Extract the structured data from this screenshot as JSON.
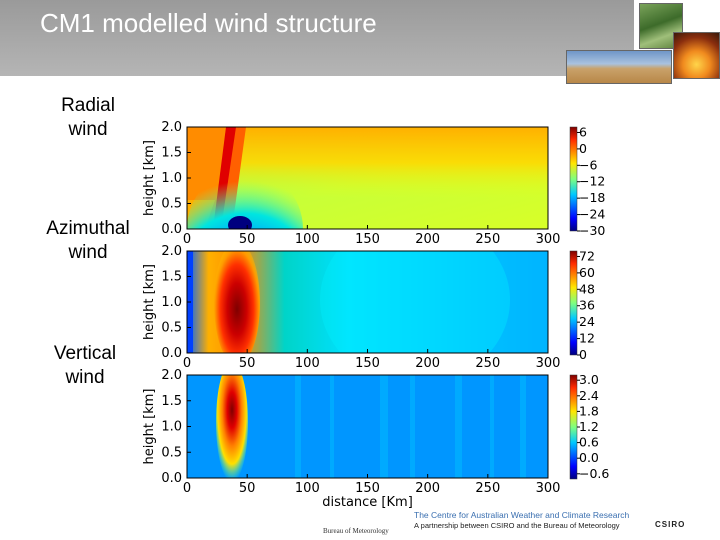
{
  "slide": {
    "title": "CM1 modelled wind structure"
  },
  "labels": {
    "radial": "Radial\nwind",
    "azimuthal": "Azimuthal\nwind",
    "vertical": "Vertical\nwind"
  },
  "footer": {
    "line1": "The Centre for Australian Weather and Climate Research",
    "line2": "A partnership between CSIRO and the Bureau of Meteorology",
    "bom": "Bureau of Meteorology",
    "csiro": "CSIRO"
  },
  "chart_data": [
    {
      "type": "heatmap",
      "name": "Radial wind",
      "ylabel": "height [km]",
      "xlabel": "",
      "xlim": [
        0,
        300
      ],
      "ylim": [
        0,
        2.0
      ],
      "xticks": [
        "0",
        "50",
        "100",
        "150",
        "200",
        "250",
        "300"
      ],
      "yticks": [
        "0.0",
        "0.5",
        "1.0",
        "1.5",
        "2.0"
      ],
      "colorbar_ticks": [
        "6",
        "0",
        "−6",
        "−12",
        "−18",
        "−24",
        "−30"
      ],
      "colorbar_range": [
        -30,
        8
      ]
    },
    {
      "type": "heatmap",
      "name": "Azimuthal wind",
      "ylabel": "height [km]",
      "xlabel": "",
      "xlim": [
        0,
        300
      ],
      "ylim": [
        0,
        2.0
      ],
      "xticks": [
        "0",
        "50",
        "100",
        "150",
        "200",
        "250",
        "300"
      ],
      "yticks": [
        "0.0",
        "0.5",
        "1.0",
        "1.5",
        "2.0"
      ],
      "colorbar_ticks": [
        "72",
        "60",
        "48",
        "36",
        "24",
        "12",
        "0"
      ],
      "colorbar_range": [
        0,
        76
      ]
    },
    {
      "type": "heatmap",
      "name": "Vertical wind",
      "ylabel": "height [km]",
      "xlabel": "distance [Km]",
      "xlim": [
        0,
        300
      ],
      "ylim": [
        0,
        2.0
      ],
      "xticks": [
        "0",
        "50",
        "100",
        "150",
        "200",
        "250",
        "300"
      ],
      "yticks": [
        "0.0",
        "0.5",
        "1.0",
        "1.5",
        "2.0"
      ],
      "colorbar_ticks": [
        "3.0",
        "2.4",
        "1.8",
        "1.2",
        "0.6",
        "0.0",
        "−0.6"
      ],
      "colorbar_range": [
        -0.8,
        3.2
      ]
    }
  ]
}
